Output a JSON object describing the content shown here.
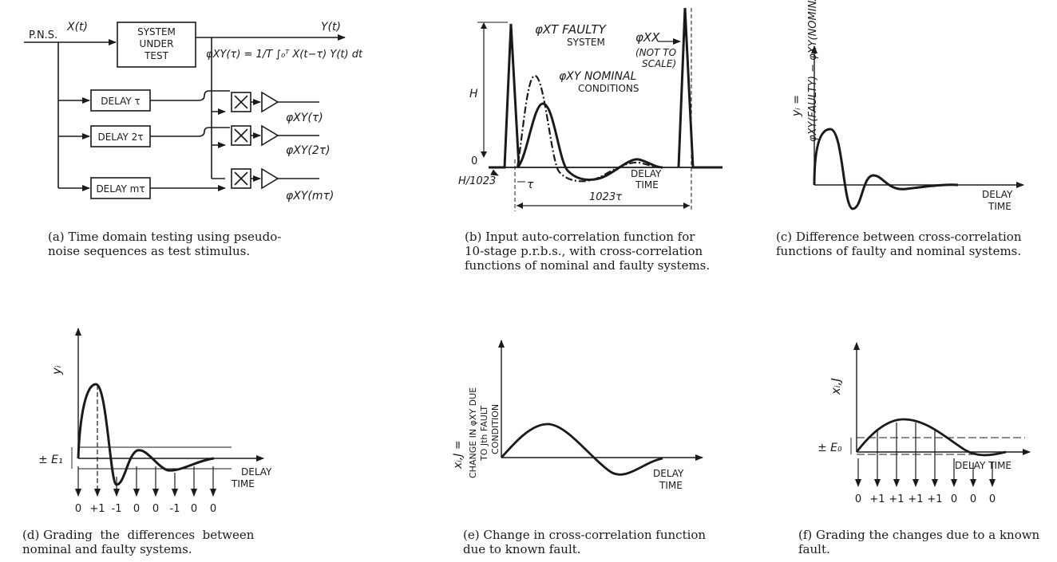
{
  "panel_a": {
    "pns": "P.N.S.",
    "xt": "X(t)",
    "yt": "Y(t)",
    "sut": [
      "SYSTEM",
      "UNDER",
      "TEST"
    ],
    "formula": "φXY(τ) = 1/T ∫₀ᵀ X(t−τ) Y(t) dt",
    "delays": [
      "DELAY τ",
      "DELAY 2τ",
      "DELAY mτ"
    ],
    "outputs": [
      "φXY(τ)",
      "φXY(2τ)",
      "φXY(mτ)"
    ],
    "caption": [
      "(a) Time domain testing using pseudo-",
      "noise sequences as test stimulus."
    ]
  },
  "panel_b": {
    "H": "H",
    "zero": "0",
    "H1023": "H/1023",
    "tau": "τ",
    "span": "1023τ",
    "faulty": [
      "φXT FAULTY",
      "SYSTEM"
    ],
    "nominal": [
      "φXY NOMINAL",
      "CONDITIONS"
    ],
    "phixx": [
      "φXX",
      "(NOT TO",
      "SCALE)"
    ],
    "delay_time": [
      "DELAY",
      "TIME"
    ],
    "caption": [
      "(b) Input auto-correlation function for",
      "10-stage p.r.b.s., with cross-correlation",
      "functions of nominal and faulty systems."
    ]
  },
  "panel_c": {
    "ylabel_top": "yᵢ =",
    "ylabel_expr": "φXY(FAULTY) − φXY(NOMINAL)",
    "delay_time": [
      "DELAY",
      "TIME"
    ],
    "caption": [
      "(c) Difference between cross-correlation",
      "functions of faulty and nominal systems."
    ]
  },
  "panel_d": {
    "ylabel": "yᵢ",
    "E": "± E₁",
    "delay_time": [
      "DELAY",
      "TIME"
    ],
    "grades": [
      "0",
      "+1",
      "-1",
      "0",
      "0",
      "-1",
      "0",
      "0"
    ],
    "caption": [
      "(d) Grading  the  differences  between",
      "nominal and faulty systems."
    ]
  },
  "panel_e": {
    "ylabel": [
      "xᵢ,J =",
      "CHANGE IN φXY DUE",
      "TO Jth FAULT",
      "CONDITION"
    ],
    "delay_time": [
      "DELAY",
      "TIME"
    ],
    "caption": [
      "(e) Change in cross-correlation function",
      "due to known fault."
    ]
  },
  "panel_f": {
    "ylabel": "xᵢ,J",
    "E": "± E₀",
    "delay_time": "DELAY TIME",
    "grades": [
      "0",
      "+1",
      "+1",
      "+1",
      "+1",
      "0",
      "0",
      "0"
    ],
    "caption": [
      "(f) Grading the changes due to a known",
      "fault."
    ]
  }
}
